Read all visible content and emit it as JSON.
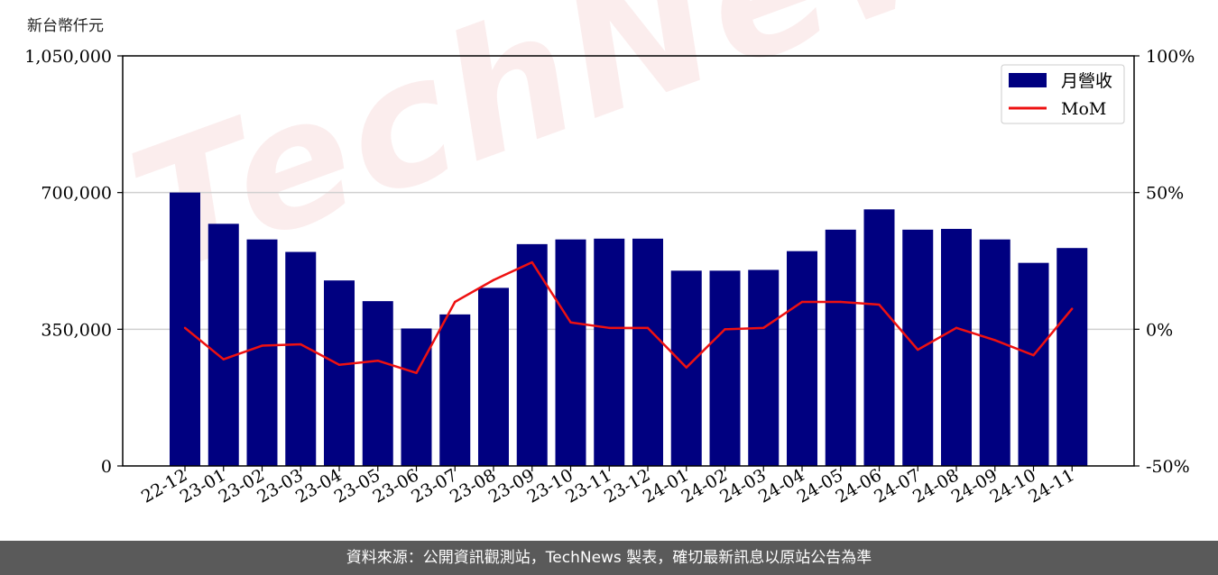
{
  "unit_label": "新台幣仟元",
  "footer_text": "資料來源：公開資訊觀測站，TechNews 製表，確切最新訊息以原站公告為準",
  "watermark_text": "TechNews",
  "colors": {
    "bar": "#000080",
    "line": "#ee1111",
    "grid": "#d0d0d0",
    "axis": "#000000",
    "footer_bg": "#5a5a5a"
  },
  "chart_data": {
    "type": "bar",
    "categories": [
      "22-12",
      "23-01",
      "23-02",
      "23-03",
      "23-04",
      "23-05",
      "23-06",
      "23-07",
      "23-08",
      "23-09",
      "23-10",
      "23-11",
      "23-12",
      "24-01",
      "24-02",
      "24-03",
      "24-04",
      "24-05",
      "24-06",
      "24-07",
      "24-08",
      "24-09",
      "24-10",
      "24-11"
    ],
    "series": [
      {
        "name": "月營收",
        "type": "bar",
        "axis": "left",
        "values": [
          700000,
          620000,
          580000,
          548000,
          475000,
          422000,
          352000,
          388000,
          456000,
          568000,
          580000,
          582000,
          582000,
          500000,
          500000,
          502000,
          550000,
          605000,
          657000,
          605000,
          607000,
          580000,
          520000,
          558000
        ]
      },
      {
        "name": "MoM",
        "type": "line",
        "axis": "right",
        "values": [
          0.5,
          -11.0,
          -6.0,
          -5.5,
          -13.0,
          -11.5,
          -16.0,
          10.0,
          18.0,
          24.5,
          2.5,
          0.5,
          0.5,
          -14.0,
          0.0,
          0.5,
          10.0,
          10.0,
          9.0,
          -7.5,
          0.5,
          -4.0,
          -9.5,
          7.5
        ]
      }
    ],
    "left_axis": {
      "ylim": [
        0,
        1050000
      ],
      "ticks": [
        0,
        350000,
        700000,
        1050000
      ],
      "tick_labels": [
        "0",
        "350,000",
        "700,000",
        "1,050,000"
      ]
    },
    "right_axis": {
      "ylim": [
        -50,
        100
      ],
      "ticks": [
        -50,
        0,
        50,
        100
      ],
      "tick_labels": [
        "-50%",
        "0%",
        "50%",
        "100%"
      ]
    },
    "grid": {
      "horizontal": true,
      "vertical": false
    },
    "legend": {
      "position": "top-right",
      "entries": [
        "月營收",
        "MoM"
      ]
    }
  }
}
